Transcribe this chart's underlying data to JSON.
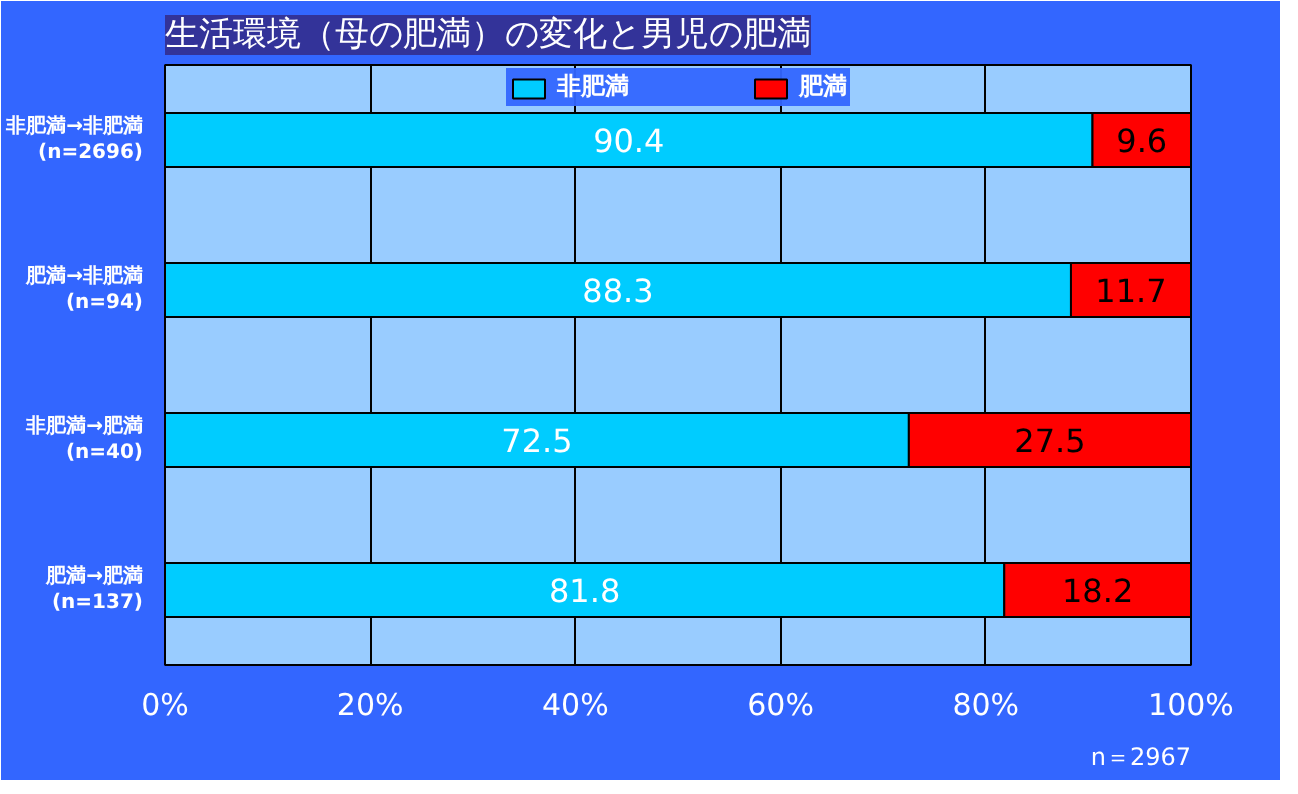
{
  "chart_data": {
    "type": "bar",
    "orientation": "horizontal",
    "stacked": true,
    "title": "生活環境（母の肥満）の変化と男児の肥満",
    "categories": [
      "非肥満→非肥満\n(n=2696)",
      "肥満→非肥満\n(n=94)",
      "非肥満→肥満\n(n=40)",
      "肥満→肥満\n(n=137)"
    ],
    "series": [
      {
        "name": "非肥満",
        "color": "#00ccff",
        "values": [
          90.4,
          88.3,
          72.5,
          81.8
        ]
      },
      {
        "name": "肥満",
        "color": "#ff0000",
        "values": [
          9.6,
          11.7,
          27.5,
          18.2
        ]
      }
    ],
    "xlim": [
      0,
      100
    ],
    "xticks": [
      {
        "value": 0,
        "label": "0%"
      },
      {
        "value": 20,
        "label": "20%"
      },
      {
        "value": 40,
        "label": "40%"
      },
      {
        "value": 60,
        "label": "60%"
      },
      {
        "value": 80,
        "label": "80%"
      },
      {
        "value": 100,
        "label": "100%"
      }
    ],
    "data_labels": true,
    "grid": "x",
    "legend": "top",
    "annotations": [
      "n＝2967"
    ]
  }
}
